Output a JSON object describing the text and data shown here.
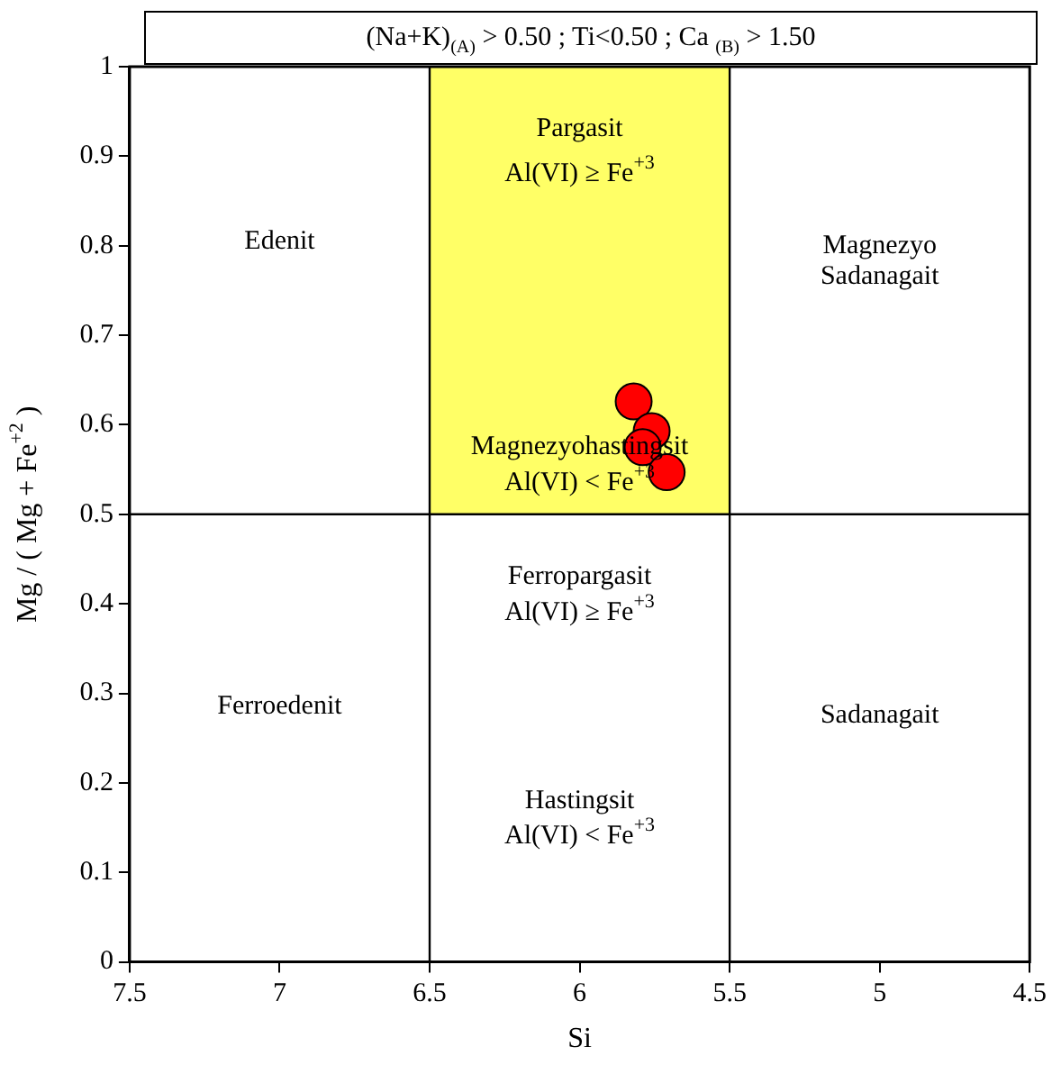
{
  "chart_data": {
    "type": "scatter",
    "title": "(Na+K)$_{(A)}$ > 0.50 ; Ti<0.50 ; Ca $_{(B)}$ > 1.50",
    "xlabel": "Si",
    "ylabel": "Mg / ( Mg + Fe$^{+2}$ )",
    "x": [
      5.82,
      5.76,
      5.79,
      5.71
    ],
    "values": [
      0.626,
      0.593,
      0.575,
      0.547
    ],
    "color": "#ff0000",
    "marker": "circle",
    "xlim": [
      7.5,
      4.5
    ],
    "ylim": [
      0,
      1
    ],
    "xticks": [
      7.5,
      7,
      6.5,
      6,
      5.5,
      5,
      4.5
    ],
    "yticks": [
      0,
      0.1,
      0.2,
      0.3,
      0.4,
      0.5,
      0.6,
      0.7,
      0.8,
      0.9,
      1
    ],
    "grid": false,
    "legend": false,
    "ref_lines": [
      {
        "axis": "x",
        "value": 6.5
      },
      {
        "axis": "x",
        "value": 5.5
      },
      {
        "axis": "y",
        "value": 0.5
      }
    ],
    "annotations": [
      "Pargasit",
      "Al(VI) ≥ Fe$^{+3}$",
      "Edenit",
      "Magnezyo",
      "Sadanagait",
      "Magnezyohastingsit",
      "Al(VI) < Fe$^{+3}$",
      "Ferropargasit",
      "Al(VI) ≥ Fe$^{+3}$",
      "Ferroedenit",
      "Sadanagait",
      "Hastingsit",
      "Al(VI) < Fe$^{+3}$"
    ]
  }
}
